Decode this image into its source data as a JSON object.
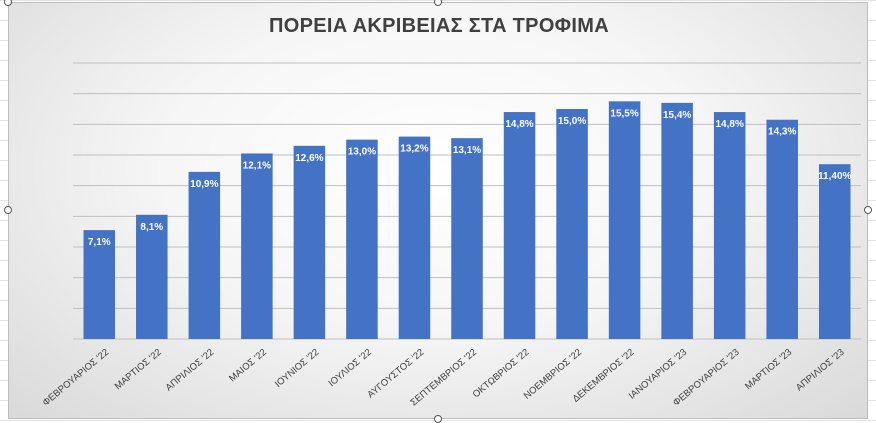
{
  "chart_data": {
    "type": "bar",
    "title": "ΠΟΡΕΙΑ ΑΚΡΙΒΕΙΑΣ ΣΤΑ ΤΡΟΦΙΜΑ",
    "categories": [
      "ΦΕΒΡΟΥΑΡΙΟΣ '22",
      "ΜΑΡΤΙΟΣ '22",
      "ΑΠΡΙΛΙΟΣ '22",
      "ΜΑΙΟΣ '22",
      "ΙΟΥΝΙΟΣ '22",
      "ΙΟΥΛΙΟΣ '22",
      "ΑΥΓΟΥΣΤΟΣ '22",
      "ΣΕΠΤΕΜΒΡΙΟΣ '22",
      "ΟΚΤΩΒΡΙΟΣ '22",
      "ΝΟΕΜΒΡΙΟΣ '22",
      "ΔΕΚΕΜΒΡΙΟΣ '22",
      "ΙΑΝΟΥΑΡΙΟΣ '23",
      "ΦΕΒΡΟΥΑΡΙΟΣ '23",
      "ΜΑΡΤΙΟΣ '23",
      "ΑΠΡΙΛΙΟΣ '23"
    ],
    "values": [
      7.1,
      8.1,
      10.9,
      12.1,
      12.6,
      13.0,
      13.2,
      13.1,
      14.8,
      15.0,
      15.5,
      15.4,
      14.8,
      14.3,
      11.4
    ],
    "data_labels": [
      "7,1%",
      "8,1%",
      "10,9%",
      "12,1%",
      "12,6%",
      "13,0%",
      "13,2%",
      "13,1%",
      "14,8%",
      "15,0%",
      "15,5%",
      "15,4%",
      "14,8%",
      "14,3%",
      "11,40%"
    ],
    "ylim": [
      0,
      18
    ],
    "grid": true,
    "colors": {
      "bar": "#4472c4",
      "grid": "#bfbfbf",
      "label": "#ffffff"
    }
  }
}
